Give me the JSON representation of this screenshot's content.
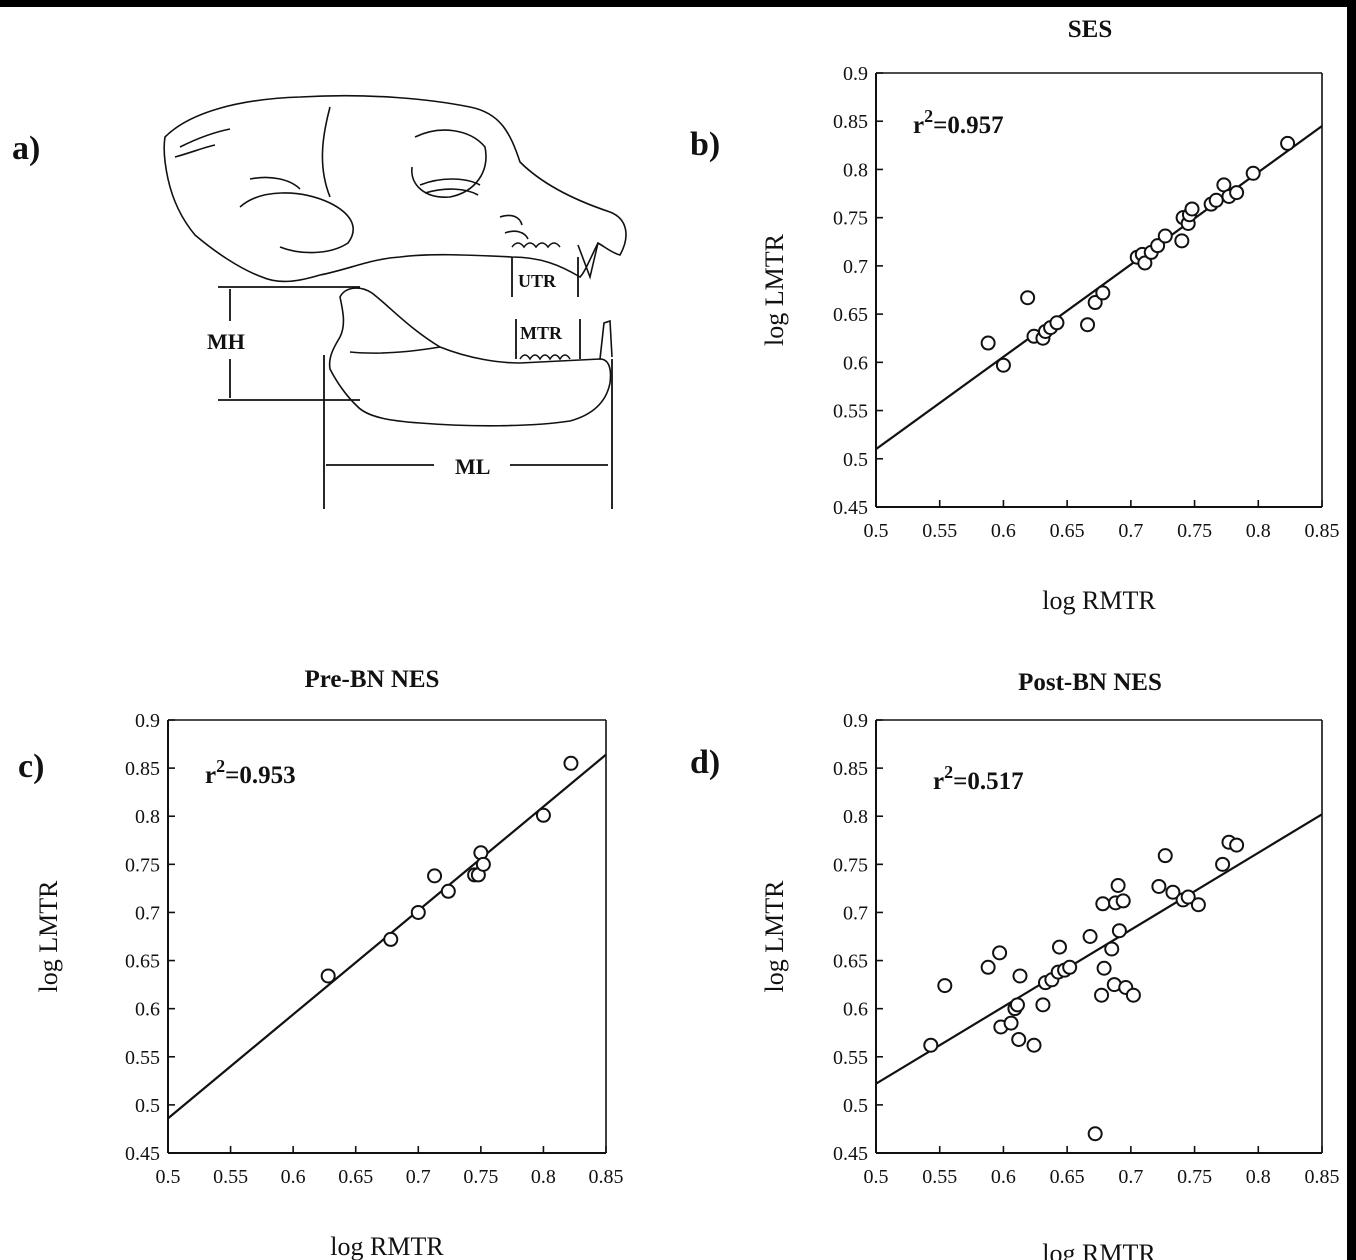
{
  "panel_a": {
    "letter": "a)",
    "labels": {
      "mh": "MH",
      "ml": "ML",
      "utr": "UTR",
      "mtr": "MTR"
    }
  },
  "chart_data": [
    {
      "id": "b",
      "type": "scatter",
      "letter": "b)",
      "title": "SES",
      "xlabel": "log RMTR",
      "ylabel": "log LMTR",
      "annotation": {
        "prefix": "r",
        "sup": "2",
        "suffix": "=0.957"
      },
      "xlim": [
        0.5,
        0.85
      ],
      "ylim": [
        0.45,
        0.9
      ],
      "xticks": [
        "0.5",
        "0.55",
        "0.6",
        "0.65",
        "0.7",
        "0.75",
        "0.8",
        "0.85"
      ],
      "yticks": [
        "0.45",
        "0.5",
        "0.55",
        "0.6",
        "0.65",
        "0.7",
        "0.75",
        "0.8",
        "0.85",
        "0.9"
      ],
      "grid": false,
      "fit_line": {
        "x": [
          0.5,
          0.85
        ],
        "y": [
          0.51,
          0.845
        ]
      },
      "points": [
        [
          0.588,
          0.62
        ],
        [
          0.6,
          0.597
        ],
        [
          0.619,
          0.667
        ],
        [
          0.624,
          0.627
        ],
        [
          0.631,
          0.625
        ],
        [
          0.633,
          0.632
        ],
        [
          0.637,
          0.636
        ],
        [
          0.642,
          0.641
        ],
        [
          0.666,
          0.639
        ],
        [
          0.672,
          0.662
        ],
        [
          0.678,
          0.672
        ],
        [
          0.705,
          0.709
        ],
        [
          0.709,
          0.712
        ],
        [
          0.711,
          0.703
        ],
        [
          0.716,
          0.714
        ],
        [
          0.721,
          0.721
        ],
        [
          0.727,
          0.731
        ],
        [
          0.74,
          0.726
        ],
        [
          0.741,
          0.75
        ],
        [
          0.745,
          0.744
        ],
        [
          0.746,
          0.753
        ],
        [
          0.748,
          0.759
        ],
        [
          0.763,
          0.764
        ],
        [
          0.767,
          0.768
        ],
        [
          0.773,
          0.784
        ],
        [
          0.777,
          0.772
        ],
        [
          0.783,
          0.776
        ],
        [
          0.796,
          0.796
        ],
        [
          0.823,
          0.827
        ]
      ]
    },
    {
      "id": "c",
      "type": "scatter",
      "letter": "c)",
      "title": "Pre-BN NES",
      "xlabel": "log RMTR",
      "ylabel": "log LMTR",
      "annotation": {
        "prefix": "r",
        "sup": "2",
        "suffix": "=0.953"
      },
      "xlim": [
        0.5,
        0.85
      ],
      "ylim": [
        0.45,
        0.9
      ],
      "xticks": [
        "0.5",
        "0.55",
        "0.6",
        "0.65",
        "0.7",
        "0.75",
        "0.8",
        "0.85"
      ],
      "yticks": [
        "0.45",
        "0.5",
        "0.55",
        "0.6",
        "0.65",
        "0.7",
        "0.75",
        "0.8",
        "0.85",
        "0.9"
      ],
      "grid": false,
      "fit_line": {
        "x": [
          0.5,
          0.85
        ],
        "y": [
          0.486,
          0.864
        ]
      },
      "points": [
        [
          0.628,
          0.634
        ],
        [
          0.678,
          0.672
        ],
        [
          0.7,
          0.7
        ],
        [
          0.713,
          0.738
        ],
        [
          0.724,
          0.722
        ],
        [
          0.745,
          0.739
        ],
        [
          0.748,
          0.739
        ],
        [
          0.75,
          0.762
        ],
        [
          0.752,
          0.75
        ],
        [
          0.8,
          0.801
        ],
        [
          0.822,
          0.855
        ]
      ]
    },
    {
      "id": "d",
      "type": "scatter",
      "letter": "d)",
      "title": "Post-BN NES",
      "xlabel": "log RMTR",
      "ylabel": "log LMTR",
      "annotation": {
        "prefix": "r",
        "sup": "2",
        "suffix": "=0.517"
      },
      "xlim": [
        0.5,
        0.85
      ],
      "ylim": [
        0.45,
        0.9
      ],
      "xticks": [
        "0.5",
        "0.55",
        "0.6",
        "0.65",
        "0.7",
        "0.75",
        "0.8",
        "0.85"
      ],
      "yticks": [
        "0.45",
        "0.5",
        "0.55",
        "0.6",
        "0.65",
        "0.7",
        "0.75",
        "0.8",
        "0.85",
        "0.9"
      ],
      "grid": false,
      "fit_line": {
        "x": [
          0.5,
          0.85
        ],
        "y": [
          0.522,
          0.802
        ]
      },
      "points": [
        [
          0.543,
          0.562
        ],
        [
          0.554,
          0.624
        ],
        [
          0.588,
          0.643
        ],
        [
          0.597,
          0.658
        ],
        [
          0.598,
          0.581
        ],
        [
          0.606,
          0.585
        ],
        [
          0.609,
          0.6
        ],
        [
          0.611,
          0.604
        ],
        [
          0.612,
          0.568
        ],
        [
          0.613,
          0.634
        ],
        [
          0.624,
          0.562
        ],
        [
          0.631,
          0.604
        ],
        [
          0.633,
          0.627
        ],
        [
          0.638,
          0.63
        ],
        [
          0.643,
          0.638
        ],
        [
          0.644,
          0.664
        ],
        [
          0.648,
          0.64
        ],
        [
          0.652,
          0.643
        ],
        [
          0.668,
          0.675
        ],
        [
          0.672,
          0.47
        ],
        [
          0.677,
          0.614
        ],
        [
          0.678,
          0.709
        ],
        [
          0.679,
          0.642
        ],
        [
          0.685,
          0.662
        ],
        [
          0.687,
          0.625
        ],
        [
          0.688,
          0.71
        ],
        [
          0.69,
          0.728
        ],
        [
          0.691,
          0.681
        ],
        [
          0.694,
          0.712
        ],
        [
          0.696,
          0.622
        ],
        [
          0.702,
          0.614
        ],
        [
          0.722,
          0.727
        ],
        [
          0.727,
          0.759
        ],
        [
          0.733,
          0.721
        ],
        [
          0.741,
          0.713
        ],
        [
          0.745,
          0.716
        ],
        [
          0.753,
          0.708
        ],
        [
          0.772,
          0.75
        ],
        [
          0.777,
          0.773
        ],
        [
          0.783,
          0.77
        ]
      ]
    }
  ]
}
